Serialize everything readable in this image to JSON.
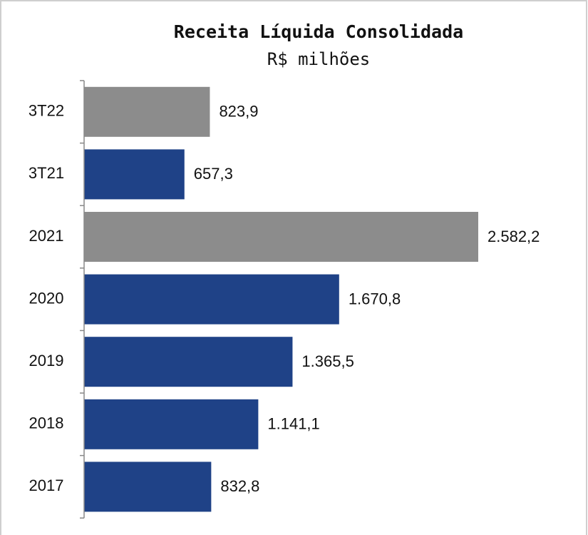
{
  "chart_data": {
    "type": "bar",
    "orientation": "horizontal",
    "title": "Receita Líquida Consolidada",
    "subtitle": "R$ milhões",
    "categories": [
      "3T22",
      "3T21",
      "2021",
      "2020",
      "2019",
      "2018",
      "2017"
    ],
    "values": [
      823.9,
      657.3,
      2582.2,
      1670.8,
      1365.5,
      1141.1,
      832.8
    ],
    "value_labels": [
      "823,9",
      "657,3",
      "2.582,2",
      "1.670,8",
      "1.365,5",
      "1.141,1",
      "832,8"
    ],
    "colors": [
      "#8c8c8c",
      "#1f4287",
      "#8c8c8c",
      "#1f4287",
      "#1f4287",
      "#1f4287",
      "#1f4287"
    ]
  }
}
